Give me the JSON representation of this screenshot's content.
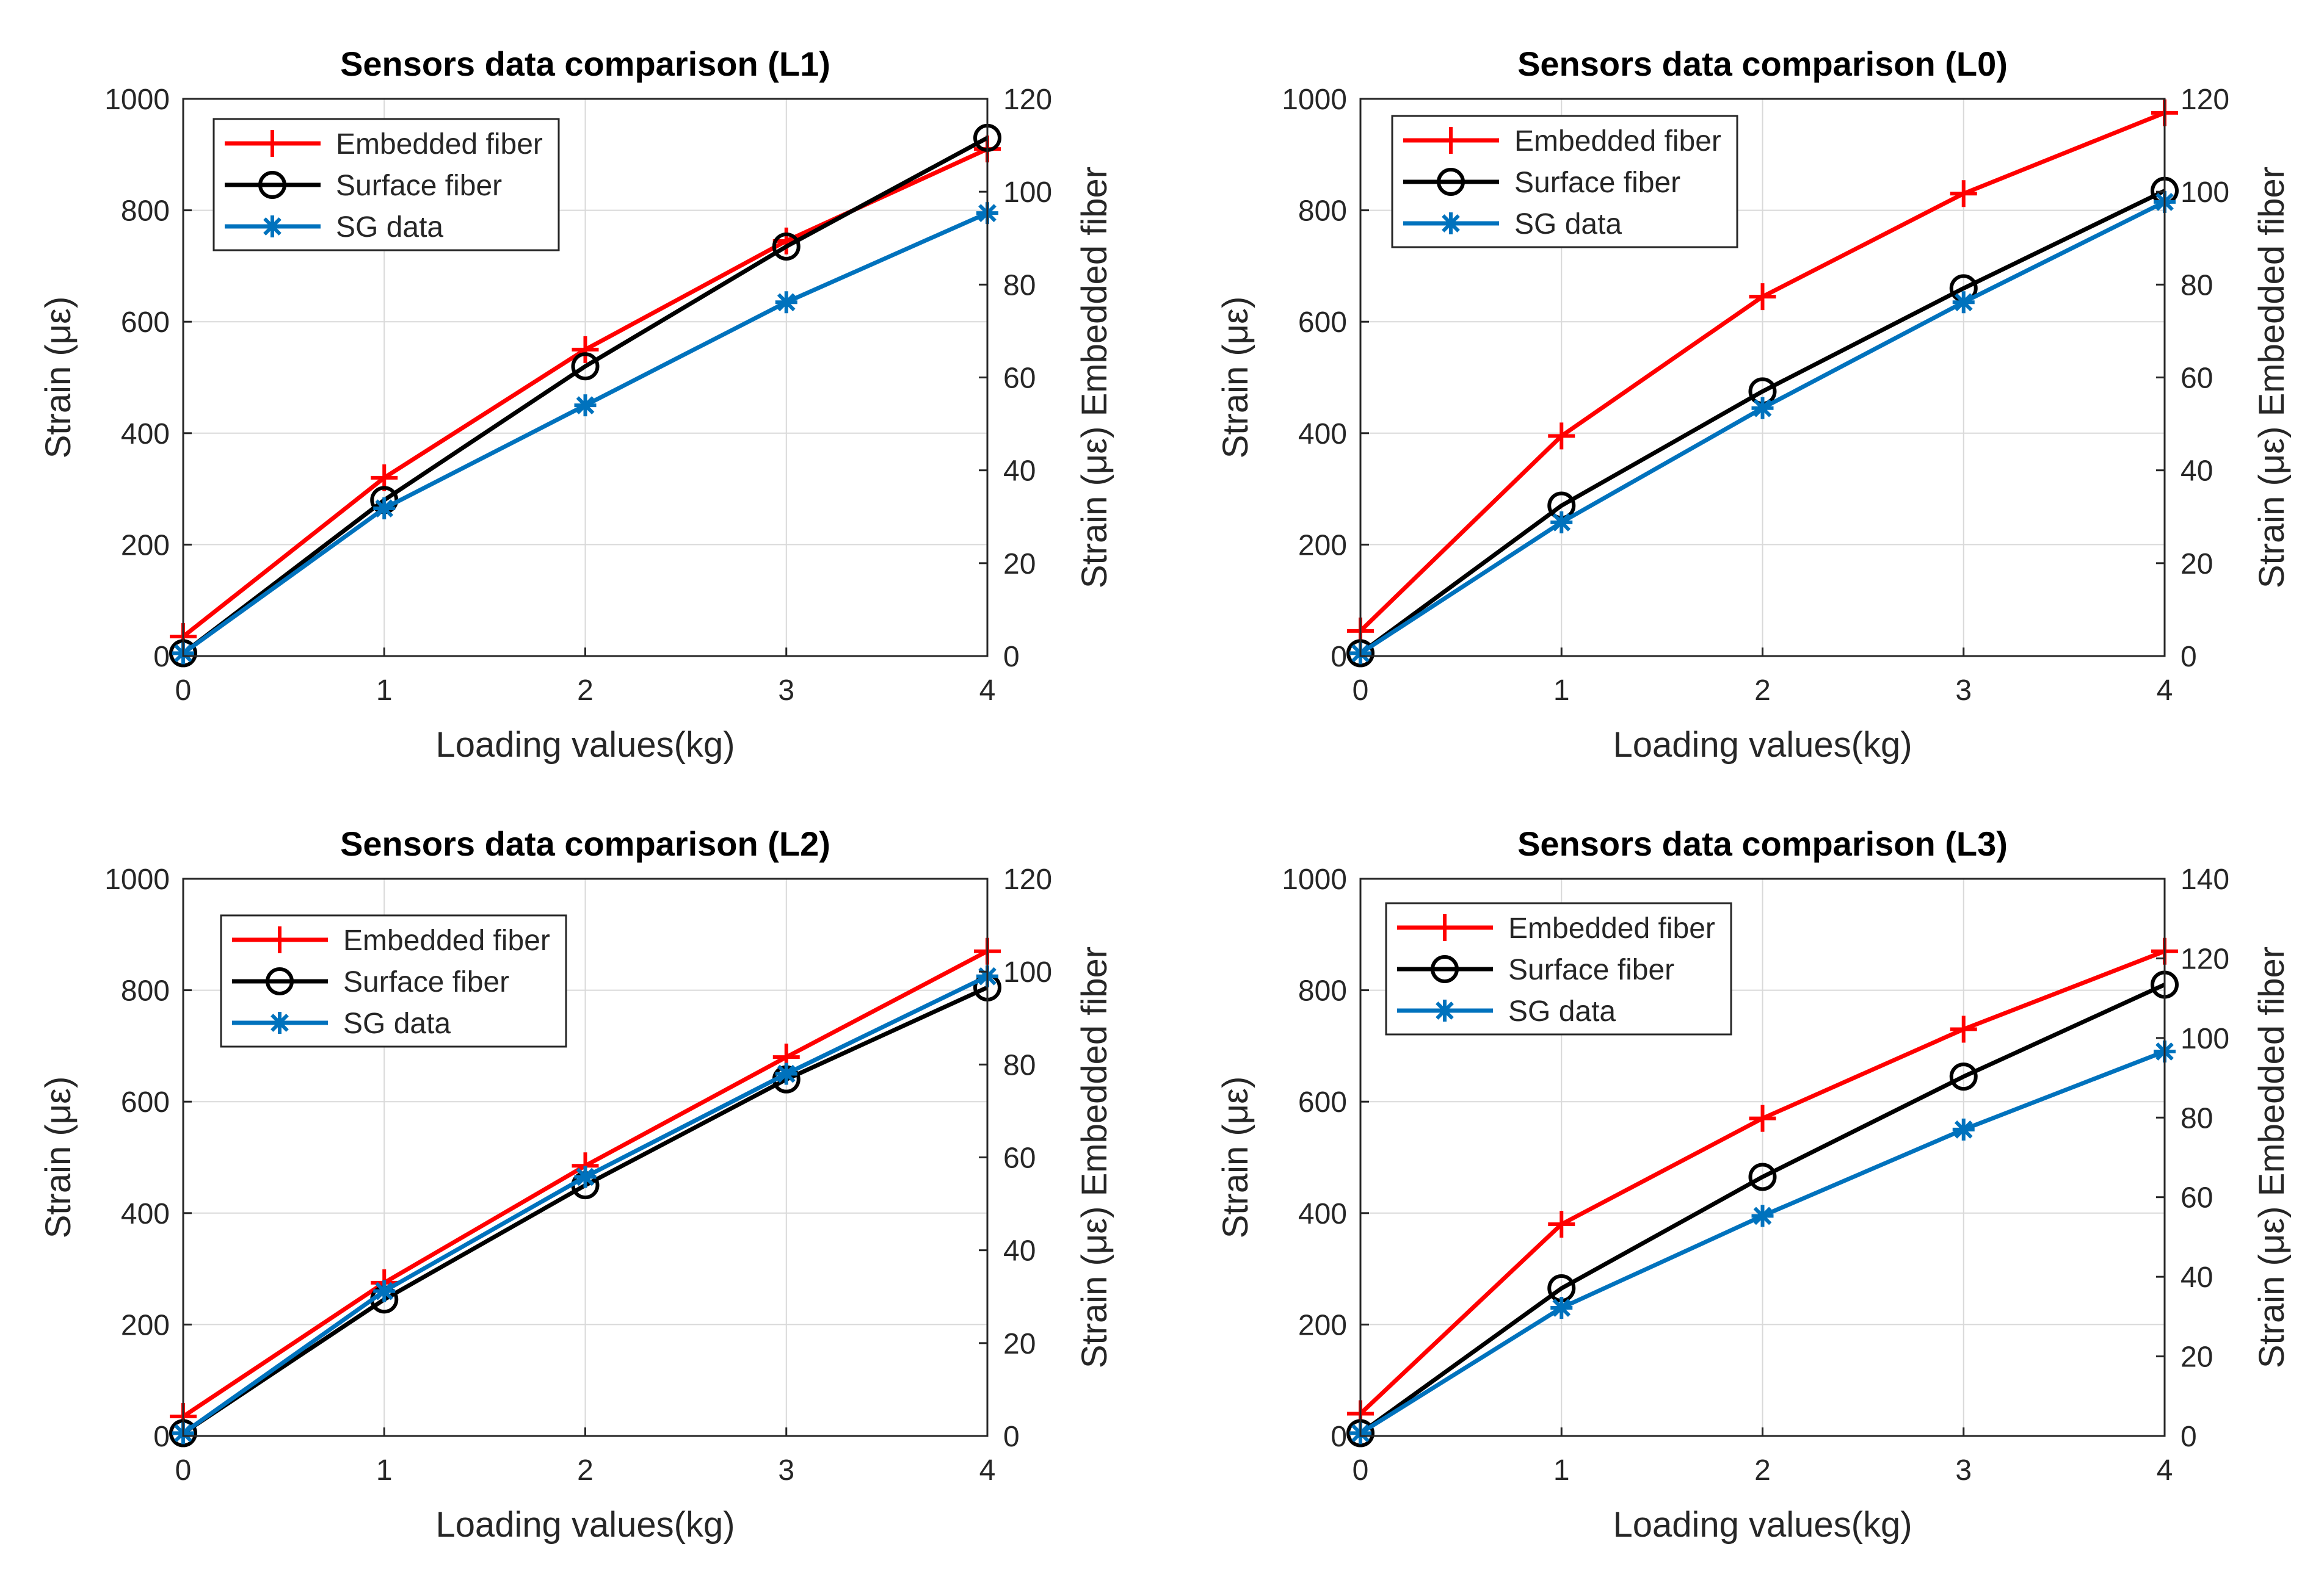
{
  "figure": {
    "colors": {
      "embedded": "#ff0000",
      "surface": "#000000",
      "sg": "#0072bd",
      "grid": "#d9d9d9",
      "axis": "#262626"
    }
  },
  "chart_data": [
    {
      "type": "line",
      "title": "Sensors data comparison (L1)",
      "xlabel": "Loading values(kg)",
      "ylabel_left": "Strain (με)",
      "ylabel_right": "Strain (με) Embedded fiber",
      "x": [
        0,
        1,
        2,
        3,
        4
      ],
      "xlim": [
        0,
        4
      ],
      "xticks": [
        "0",
        "1",
        "2",
        "3",
        "4"
      ],
      "ylim_left": [
        0,
        1000
      ],
      "yticks_left": [
        "0",
        "200",
        "400",
        "600",
        "800",
        "1000"
      ],
      "ylim_right": [
        0,
        120
      ],
      "yticks_right": [
        "0",
        "20",
        "40",
        "60",
        "80",
        "100",
        "120"
      ],
      "grid": true,
      "legend_position": "top-left",
      "series": [
        {
          "name": "Embedded fiber",
          "values": [
            35,
            320,
            550,
            745,
            910
          ],
          "marker": "plus",
          "color_key": "embedded"
        },
        {
          "name": "Surface fiber",
          "values": [
            5,
            280,
            520,
            735,
            930
          ],
          "marker": "circle",
          "color_key": "surface"
        },
        {
          "name": "SG data",
          "values": [
            5,
            265,
            450,
            635,
            795
          ],
          "marker": "asterisk",
          "color_key": "sg"
        }
      ]
    },
    {
      "type": "line",
      "title": "Sensors data comparison (L0)",
      "xlabel": "Loading values(kg)",
      "ylabel_left": "Strain (με)",
      "ylabel_right": "Strain (με) Embedded fiber",
      "x": [
        0,
        1,
        2,
        3,
        4
      ],
      "xlim": [
        0,
        4
      ],
      "xticks": [
        "0",
        "1",
        "2",
        "3",
        "4"
      ],
      "ylim_left": [
        0,
        1000
      ],
      "yticks_left": [
        "0",
        "200",
        "400",
        "600",
        "800",
        "1000"
      ],
      "ylim_right": [
        0,
        120
      ],
      "yticks_right": [
        "0",
        "20",
        "40",
        "60",
        "80",
        "100",
        "120"
      ],
      "grid": true,
      "legend_position": "top-left",
      "series": [
        {
          "name": "Embedded fiber",
          "values": [
            45,
            395,
            645,
            830,
            975
          ],
          "marker": "plus",
          "color_key": "embedded"
        },
        {
          "name": "Surface fiber",
          "values": [
            5,
            270,
            475,
            660,
            835
          ],
          "marker": "circle",
          "color_key": "surface"
        },
        {
          "name": "SG data",
          "values": [
            5,
            240,
            445,
            635,
            815
          ],
          "marker": "asterisk",
          "color_key": "sg"
        }
      ]
    },
    {
      "type": "line",
      "title": "Sensors data comparison (L2)",
      "xlabel": "Loading values(kg)",
      "ylabel_left": "Strain (με)",
      "ylabel_right": "Strain (με) Embedded fiber",
      "x": [
        0,
        1,
        2,
        3,
        4
      ],
      "xlim": [
        0,
        4
      ],
      "xticks": [
        "0",
        "1",
        "2",
        "3",
        "4"
      ],
      "ylim_left": [
        0,
        1000
      ],
      "yticks_left": [
        "0",
        "200",
        "400",
        "600",
        "800",
        "1000"
      ],
      "ylim_right": [
        0,
        120
      ],
      "yticks_right": [
        "0",
        "20",
        "40",
        "60",
        "80",
        "100",
        "120"
      ],
      "grid": true,
      "legend_position": "top-left",
      "series": [
        {
          "name": "Embedded fiber",
          "values": [
            35,
            275,
            485,
            680,
            870
          ],
          "marker": "plus",
          "color_key": "embedded"
        },
        {
          "name": "Surface fiber",
          "values": [
            5,
            245,
            450,
            640,
            805
          ],
          "marker": "circle",
          "color_key": "surface"
        },
        {
          "name": "SG data",
          "values": [
            5,
            260,
            465,
            650,
            825
          ],
          "marker": "asterisk",
          "color_key": "sg"
        }
      ]
    },
    {
      "type": "line",
      "title": "Sensors data comparison (L3)",
      "xlabel": "Loading values(kg)",
      "ylabel_left": "Strain (με)",
      "ylabel_right": "Strain (με) Embedded fiber",
      "x": [
        0,
        1,
        2,
        3,
        4
      ],
      "xlim": [
        0,
        4
      ],
      "xticks": [
        "0",
        "1",
        "2",
        "3",
        "4"
      ],
      "ylim_left": [
        0,
        1000
      ],
      "yticks_left": [
        "0",
        "200",
        "400",
        "600",
        "800",
        "1000"
      ],
      "ylim_right": [
        0,
        140
      ],
      "yticks_right": [
        "0",
        "20",
        "40",
        "60",
        "80",
        "100",
        "120",
        "140"
      ],
      "grid": true,
      "legend_position": "top-left",
      "series": [
        {
          "name": "Embedded fiber",
          "values": [
            40,
            380,
            570,
            730,
            870
          ],
          "marker": "plus",
          "color_key": "embedded"
        },
        {
          "name": "Surface fiber",
          "values": [
            5,
            265,
            465,
            645,
            810
          ],
          "marker": "circle",
          "color_key": "surface"
        },
        {
          "name": "SG data",
          "values": [
            5,
            230,
            395,
            550,
            690
          ],
          "marker": "asterisk",
          "color_key": "sg"
        }
      ]
    }
  ]
}
